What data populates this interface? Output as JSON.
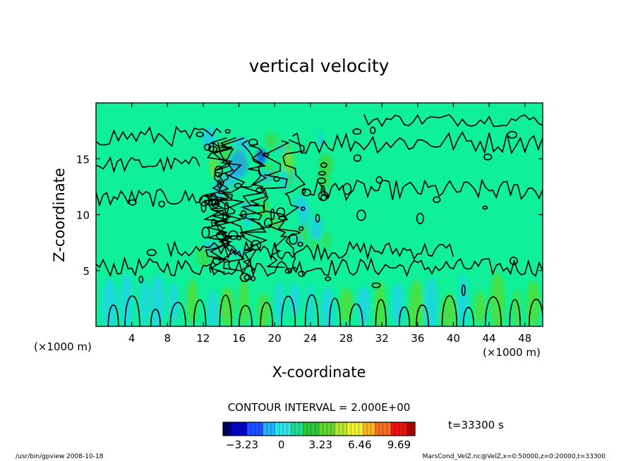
{
  "chart_data": {
    "type": "heatmap",
    "title": "vertical velocity",
    "xlabel": "X-coordinate",
    "ylabel": "Z-coordinate",
    "x_unit_left": "(×1000 m)",
    "x_unit_right": "(×1000 m)",
    "xlim": [
      0,
      50
    ],
    "ylim": [
      0,
      20
    ],
    "x_ticks": [
      4,
      8,
      12,
      16,
      20,
      24,
      28,
      32,
      36,
      40,
      44,
      48
    ],
    "y_ticks": [
      5,
      10,
      15
    ],
    "contour_interval_text": "CONTOUR INTERVAL = 2.000E+00",
    "time_label": "t=33300 s",
    "colorbar": {
      "min": -4.8,
      "max": 11.0,
      "tick_values": [
        -3.23,
        0,
        3.23,
        6.46,
        9.69
      ],
      "tick_labels": [
        "−3.23",
        "0",
        "3.23",
        "6.46",
        "9.69"
      ],
      "colors": [
        "#000060",
        "#0000c8",
        "#1e50ff",
        "#22b0ff",
        "#2ee6e6",
        "#22dc96",
        "#28c83c",
        "#64d232",
        "#b4e632",
        "#f0f032",
        "#f5b428",
        "#f56e1e",
        "#e61414",
        "#b40000"
      ]
    },
    "grid": false,
    "footer_left": "/usr/bin/gpview   2008-10-18",
    "footer_right": "MarsCond_VelZ.nc@VelZ,x=0:50000,z=0:20000,t=33300"
  }
}
